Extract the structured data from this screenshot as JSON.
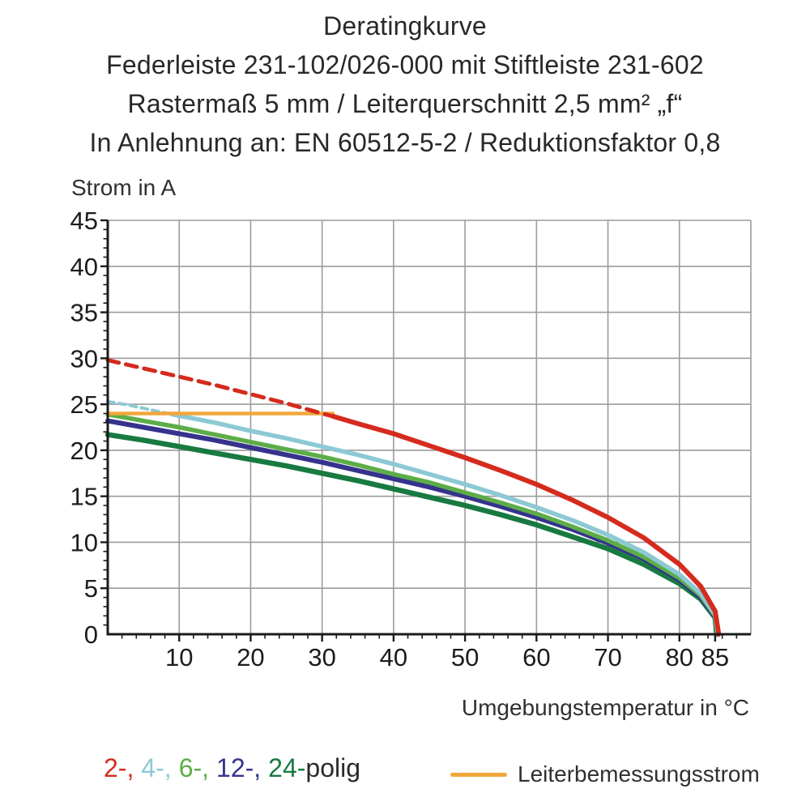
{
  "header": {
    "title": "Deratingkurve",
    "line2": "Federleiste 231-102/026-000 mit Stiftleiste 231-602",
    "line3": "Rastermaß 5 mm / Leiterquerschnitt 2,5 mm² „f“",
    "line4": "In Anlehnung an: EN 60512-5-2 / Reduktionsfaktor 0,8"
  },
  "legend": {
    "pole_items": [
      {
        "label": "2-,",
        "color": "#d52b1e"
      },
      {
        "label": "4-,",
        "color": "#8cc9d4"
      },
      {
        "label": "6-,",
        "color": "#5cad48"
      },
      {
        "label": "12-,",
        "color": "#35338c"
      },
      {
        "label": "24-",
        "color": "#187a41"
      }
    ],
    "polig_suffix": "polig",
    "rated_label": "Leiterbemessungsstrom",
    "rated_color": "#f2a73c"
  },
  "chart_data": {
    "type": "line",
    "title": "Deratingkurve",
    "xlabel": "Umgebungstemperatur in °C",
    "ylabel": "Strom in A",
    "xlim": [
      0,
      90
    ],
    "ylim": [
      0,
      45
    ],
    "grid": true,
    "grid_color": "#9c9c9c",
    "axis_color": "#1b1b1b",
    "x_gridlines": [
      10,
      20,
      30,
      40,
      50,
      60,
      70,
      80,
      90
    ],
    "x_tick_labels": [
      10,
      20,
      30,
      40,
      50,
      60,
      70,
      80,
      85
    ],
    "x_minor_step": 2,
    "y_gridlines": [
      5,
      10,
      15,
      20,
      25,
      30,
      35,
      40,
      45
    ],
    "y_tick_labels": [
      0,
      5,
      10,
      15,
      20,
      25,
      30,
      35,
      40,
      45
    ],
    "y_minor_step": 1,
    "series": [
      {
        "id": "24-polig",
        "name": "24-polig",
        "color": "#187a41",
        "width": 6.5,
        "style": "solid",
        "points": [
          [
            0,
            21.7
          ],
          [
            5,
            21.1
          ],
          [
            10,
            20.4
          ],
          [
            15,
            19.7
          ],
          [
            20,
            19.0
          ],
          [
            25,
            18.3
          ],
          [
            30,
            17.5
          ],
          [
            35,
            16.7
          ],
          [
            40,
            15.8
          ],
          [
            45,
            14.9
          ],
          [
            50,
            14.0
          ],
          [
            55,
            13.0
          ],
          [
            60,
            11.9
          ],
          [
            65,
            10.6
          ],
          [
            70,
            9.3
          ],
          [
            75,
            7.6
          ],
          [
            80,
            5.5
          ],
          [
            83,
            3.8
          ],
          [
            85,
            1.8
          ],
          [
            85.2,
            0
          ]
        ]
      },
      {
        "id": "12-polig",
        "name": "12-polig",
        "color": "#35338c",
        "width": 6,
        "style": "solid",
        "points": [
          [
            0,
            23.2
          ],
          [
            5,
            22.5
          ],
          [
            10,
            21.8
          ],
          [
            15,
            21.1
          ],
          [
            20,
            20.3
          ],
          [
            25,
            19.5
          ],
          [
            30,
            18.7
          ],
          [
            35,
            17.8
          ],
          [
            40,
            16.9
          ],
          [
            45,
            16.0
          ],
          [
            50,
            15.0
          ],
          [
            55,
            13.9
          ],
          [
            60,
            12.7
          ],
          [
            65,
            11.4
          ],
          [
            70,
            9.9
          ],
          [
            75,
            8.2
          ],
          [
            80,
            5.9
          ],
          [
            83,
            4.0
          ],
          [
            85,
            1.9
          ],
          [
            85.3,
            0
          ]
        ]
      },
      {
        "id": "6-polig",
        "name": "6-polig",
        "color": "#5cad48",
        "width": 5.5,
        "style": "solid",
        "points": [
          [
            0,
            23.9
          ],
          [
            5,
            23.2
          ],
          [
            10,
            22.5
          ],
          [
            15,
            21.7
          ],
          [
            20,
            20.9
          ],
          [
            25,
            20.1
          ],
          [
            30,
            19.3
          ],
          [
            35,
            18.4
          ],
          [
            40,
            17.4
          ],
          [
            45,
            16.5
          ],
          [
            50,
            15.4
          ],
          [
            55,
            14.3
          ],
          [
            60,
            13.1
          ],
          [
            65,
            11.7
          ],
          [
            70,
            10.2
          ],
          [
            75,
            8.4
          ],
          [
            80,
            6.1
          ],
          [
            83,
            4.2
          ],
          [
            85,
            2.0
          ],
          [
            85.3,
            0
          ]
        ]
      },
      {
        "id": "4-polig-dashed",
        "name": "4-polig (oberhalb Leiterbemessungsstrom)",
        "color": "#8cc9d4",
        "width": 4,
        "style": "dashed",
        "dash": "8,6",
        "points": [
          [
            0,
            25.3
          ],
          [
            3,
            24.9
          ],
          [
            6,
            24.4
          ],
          [
            9,
            23.9
          ]
        ]
      },
      {
        "id": "4-polig",
        "name": "4-polig",
        "color": "#8cc9d4",
        "width": 5.5,
        "style": "solid",
        "points": [
          [
            9,
            23.9
          ],
          [
            15,
            23.0
          ],
          [
            20,
            22.1
          ],
          [
            25,
            21.3
          ],
          [
            30,
            20.4
          ],
          [
            35,
            19.5
          ],
          [
            40,
            18.5
          ],
          [
            45,
            17.4
          ],
          [
            50,
            16.3
          ],
          [
            55,
            15.1
          ],
          [
            60,
            13.8
          ],
          [
            65,
            12.4
          ],
          [
            70,
            10.8
          ],
          [
            75,
            8.9
          ],
          [
            80,
            6.5
          ],
          [
            83,
            4.4
          ],
          [
            85,
            2.1
          ],
          [
            85.4,
            0
          ]
        ]
      },
      {
        "id": "leiterbemessungsstrom",
        "name": "Leiterbemessungsstrom",
        "color": "#f2a73c",
        "width": 4.5,
        "style": "solid",
        "points": [
          [
            0,
            24
          ],
          [
            31.5,
            24
          ]
        ]
      },
      {
        "id": "2-polig-dashed",
        "name": "2-polig (oberhalb Leiterbemessungsstrom)",
        "color": "#d52b1e",
        "width": 5,
        "style": "dashed",
        "dash": "14,9",
        "points": [
          [
            0,
            29.8
          ],
          [
            5,
            28.9
          ],
          [
            10,
            28.0
          ],
          [
            15,
            27.1
          ],
          [
            20,
            26.1
          ],
          [
            25,
            25.1
          ],
          [
            30,
            24.0
          ],
          [
            31.5,
            23.7
          ]
        ]
      },
      {
        "id": "2-polig",
        "name": "2-polig",
        "color": "#d52b1e",
        "width": 6,
        "style": "solid",
        "points": [
          [
            31.5,
            23.7
          ],
          [
            35,
            22.9
          ],
          [
            40,
            21.8
          ],
          [
            45,
            20.5
          ],
          [
            50,
            19.2
          ],
          [
            55,
            17.8
          ],
          [
            60,
            16.3
          ],
          [
            65,
            14.6
          ],
          [
            70,
            12.7
          ],
          [
            75,
            10.5
          ],
          [
            80,
            7.6
          ],
          [
            83,
            5.2
          ],
          [
            85,
            2.5
          ],
          [
            85.5,
            0
          ]
        ]
      }
    ]
  }
}
